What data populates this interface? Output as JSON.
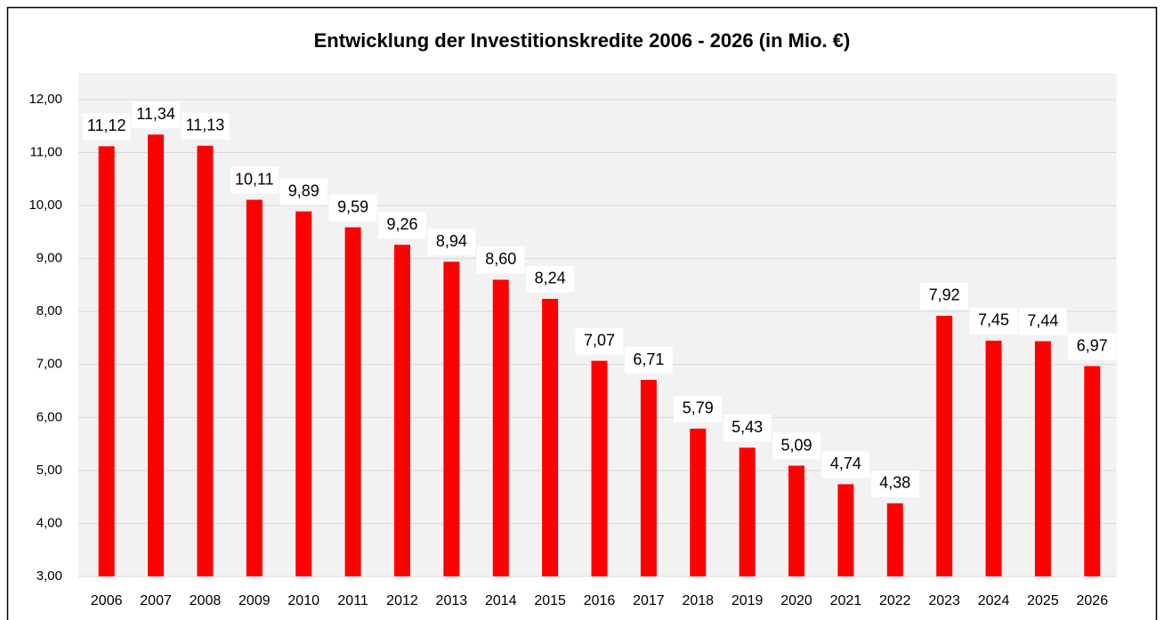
{
  "chart_data": {
    "type": "bar",
    "title": "Entwicklung der Investitionskredite 2006 - 2026 (in Mio. €)",
    "categories": [
      "2006",
      "2007",
      "2008",
      "2009",
      "2010",
      "2011",
      "2012",
      "2013",
      "2014",
      "2015",
      "2016",
      "2017",
      "2018",
      "2019",
      "2020",
      "2021",
      "2022",
      "2023",
      "2024",
      "2025",
      "2026"
    ],
    "values": [
      11.12,
      11.34,
      11.13,
      10.11,
      9.89,
      9.59,
      9.26,
      8.94,
      8.6,
      8.24,
      7.07,
      6.71,
      5.79,
      5.43,
      5.09,
      4.74,
      4.38,
      7.92,
      7.45,
      7.44,
      6.97
    ],
    "value_labels": [
      "11,12",
      "11,34",
      "11,13",
      "10,11",
      "9,89",
      "9,59",
      "9,26",
      "8,94",
      "8,60",
      "8,24",
      "7,07",
      "6,71",
      "5,79",
      "5,43",
      "5,09",
      "4,74",
      "4,38",
      "7,92",
      "7,45",
      "7,44",
      "6,97"
    ],
    "color": "#ff0000",
    "ylim": [
      3,
      12
    ],
    "yticks": [
      {
        "value": 3,
        "label": "3,00"
      },
      {
        "value": 4,
        "label": "4,00"
      },
      {
        "value": 5,
        "label": "5,00"
      },
      {
        "value": 6,
        "label": "6,00"
      },
      {
        "value": 7,
        "label": "7,00"
      },
      {
        "value": 8,
        "label": "8,00"
      },
      {
        "value": 9,
        "label": "9,00"
      },
      {
        "value": 10,
        "label": "10,00"
      },
      {
        "value": 11,
        "label": "11,00"
      },
      {
        "value": 12,
        "label": "12,00"
      }
    ],
    "grid": true
  }
}
